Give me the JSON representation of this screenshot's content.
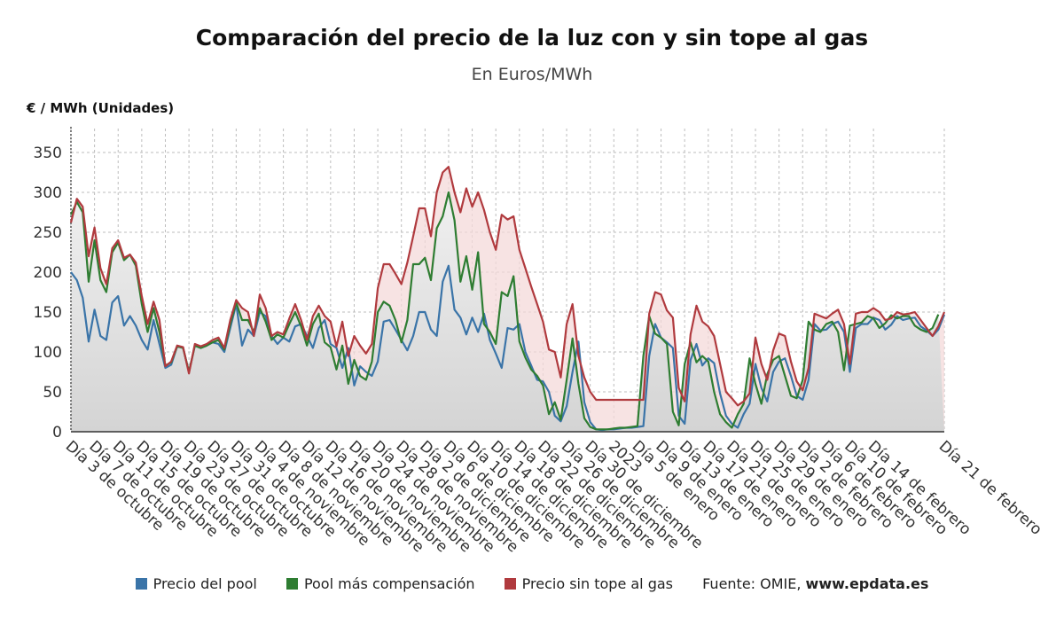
{
  "title": "Comparación del precio de la luz con y sin tope al gas",
  "subtitle": "En Euros/MWh",
  "source": {
    "label": "Fuente: OMIE, ",
    "value": "www.epdata.es"
  },
  "colors": {
    "pool": "#3a74a8",
    "compensacion": "#2e7d32",
    "sin_tope": "#b03a3e",
    "fill_red": "#f4dada",
    "fill_grey": "#d8d8d8",
    "grid": "#bdbdbd"
  },
  "chart_data": {
    "type": "line",
    "title": "Comparación del precio de la luz con y sin tope al gas",
    "subtitle": "En Euros/MWh",
    "ylabel": "€ / MWh (Unidades)",
    "xlabel": "",
    "ylim": [
      0,
      380
    ],
    "yticks": [
      0,
      50,
      100,
      150,
      200,
      250,
      300,
      350
    ],
    "grid": true,
    "legend_position": "bottom",
    "x_tick_labels": [
      "Día 3 de octubre",
      "Día 7 de octubre",
      "Día 11 de octubre",
      "Día 15 de octubre",
      "Día 19 de octubre",
      "Día 23 de octubre",
      "Día 27 de octubre",
      "Día 31 de octubre",
      "Día 4 de noviembre",
      "Día 8 de noviembre",
      "Día 12 de noviembre",
      "Día 16 de noviembre",
      "Día 20 de noviembre",
      "Día 24 de noviembre",
      "Día 28 de noviembre",
      "Día 2 de diciembre",
      "Día 6 de diciembre",
      "Día 10 de diciembre",
      "Día 14 de diciembre",
      "Día 18 de diciembre",
      "Día 22 de diciembre",
      "Día 26 de diciembre",
      "Día 30 de diciembre",
      "2023",
      "Día 5 de enero",
      "Día 9 de enero",
      "Día 13 de enero",
      "Día 17 de enero",
      "Día 21 de enero",
      "Día 25 de enero",
      "Día 29 de enero",
      "Día 2 de febrero",
      "Día 6 de febrero",
      "Día 10 de febrero",
      "Día 14 de febrero",
      "Día 21 de febrero"
    ],
    "series": [
      {
        "name": "Precio del pool",
        "key": "pool",
        "values": [
          200,
          190,
          168,
          113,
          153,
          120,
          115,
          162,
          170,
          133,
          145,
          133,
          115,
          103,
          140,
          110,
          80,
          84,
          107,
          105,
          75,
          108,
          105,
          108,
          112,
          110,
          100,
          130,
          160,
          108,
          128,
          120,
          150,
          145,
          120,
          110,
          118,
          113,
          132,
          135,
          120,
          105,
          130,
          140,
          110,
          105,
          80,
          105,
          58,
          82,
          75,
          70,
          88,
          138,
          140,
          128,
          115,
          102,
          120,
          150,
          150,
          128,
          120,
          188,
          208,
          153,
          143,
          122,
          143,
          125,
          148,
          115,
          98,
          80,
          130,
          128,
          135,
          100,
          83,
          65,
          63,
          50,
          20,
          13,
          32,
          75,
          113,
          37,
          12,
          3,
          2,
          3,
          3,
          4,
          5,
          5,
          6,
          7,
          95,
          135,
          118,
          112,
          105,
          20,
          10,
          90,
          110,
          83,
          92,
          86,
          48,
          20,
          10,
          5,
          22,
          35,
          85,
          55,
          38,
          75,
          88,
          92,
          70,
          45,
          40,
          65,
          135,
          127,
          128,
          135,
          138,
          125,
          75,
          130,
          135,
          135,
          143,
          140,
          128,
          134,
          145,
          140,
          142,
          143,
          132,
          127,
          120,
          128,
          147
        ]
      },
      {
        "name": "Pool más compensación",
        "key": "compensacion",
        "values": [
          272,
          288,
          275,
          188,
          240,
          190,
          175,
          225,
          237,
          215,
          222,
          208,
          160,
          125,
          155,
          125,
          83,
          87,
          107,
          105,
          75,
          108,
          105,
          108,
          112,
          115,
          103,
          135,
          162,
          140,
          140,
          125,
          155,
          138,
          115,
          122,
          118,
          135,
          150,
          132,
          108,
          135,
          148,
          112,
          106,
          78,
          108,
          60,
          90,
          70,
          65,
          88,
          150,
          163,
          158,
          140,
          112,
          140,
          210,
          210,
          218,
          190,
          255,
          270,
          300,
          265,
          188,
          220,
          178,
          225,
          135,
          125,
          110,
          175,
          170,
          195,
          113,
          93,
          78,
          70,
          58,
          22,
          37,
          15,
          65,
          117,
          60,
          17,
          6,
          3,
          3,
          3,
          4,
          5,
          5,
          6,
          7,
          95,
          145,
          123,
          118,
          110,
          25,
          8,
          85,
          112,
          87,
          95,
          88,
          50,
          22,
          12,
          5,
          22,
          35,
          92,
          60,
          35,
          72,
          90,
          95,
          70,
          45,
          42,
          65,
          138,
          128,
          125,
          135,
          138,
          125,
          77,
          133,
          135,
          137,
          145,
          142,
          130,
          136,
          146,
          142,
          145,
          145,
          133,
          128,
          125,
          130,
          147
        ]
      },
      {
        "name": "Precio sin tope al gas",
        "key": "sin_tope",
        "values": [
          262,
          292,
          282,
          220,
          256,
          205,
          185,
          230,
          240,
          218,
          222,
          212,
          170,
          135,
          163,
          140,
          82,
          88,
          108,
          106,
          73,
          110,
          107,
          110,
          115,
          118,
          105,
          140,
          165,
          155,
          150,
          120,
          172,
          155,
          120,
          125,
          122,
          142,
          160,
          140,
          115,
          145,
          158,
          145,
          138,
          107,
          138,
          95,
          120,
          108,
          98,
          110,
          180,
          210,
          210,
          198,
          185,
          212,
          245,
          280,
          280,
          245,
          300,
          325,
          332,
          300,
          275,
          305,
          282,
          300,
          278,
          250,
          228,
          272,
          266,
          270,
          228,
          205,
          182,
          160,
          138,
          103,
          100,
          68,
          135,
          160,
          95,
          68,
          50,
          40,
          40,
          40,
          40,
          40,
          40,
          40,
          40,
          40,
          148,
          175,
          172,
          152,
          143,
          55,
          38,
          122,
          158,
          138,
          132,
          120,
          85,
          50,
          42,
          33,
          38,
          48,
          118,
          85,
          65,
          102,
          123,
          120,
          88,
          63,
          52,
          80,
          148,
          145,
          142,
          148,
          153,
          135,
          85,
          148,
          150,
          150,
          155,
          150,
          140,
          142,
          150,
          147,
          148,
          150,
          140,
          130,
          120,
          132,
          150
        ]
      }
    ]
  }
}
